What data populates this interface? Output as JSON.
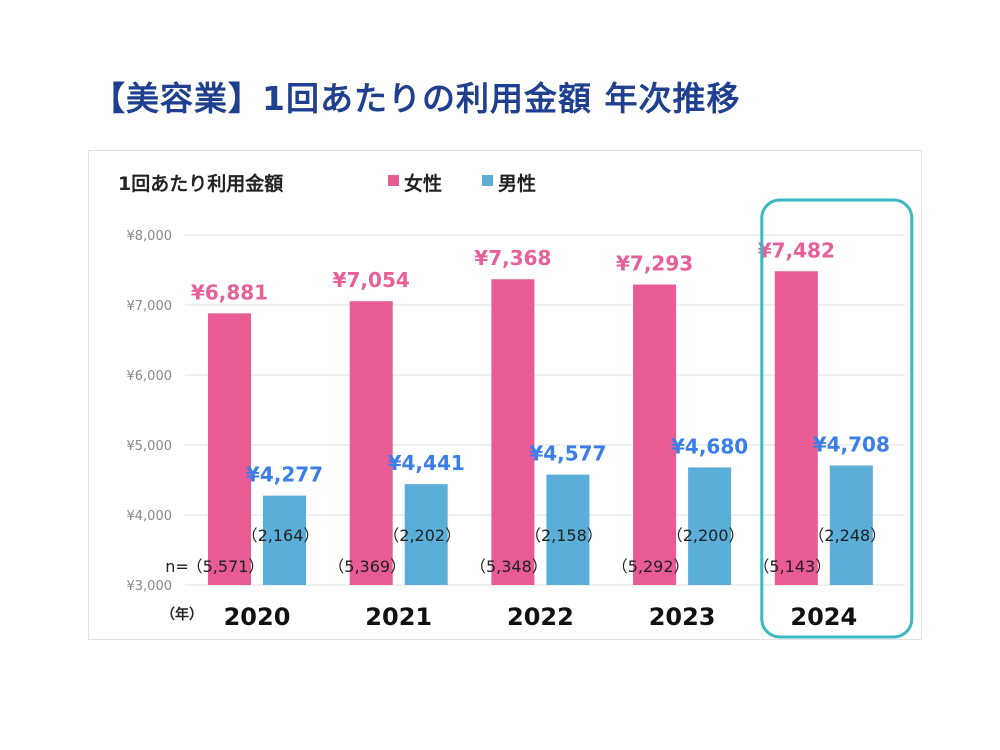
{
  "page_title": "【美容業】1回あたりの利用金額 年次推移",
  "chart_data": {
    "type": "bar",
    "title": "1回あたり利用金額",
    "categories": [
      "2020",
      "2021",
      "2022",
      "2023",
      "2024"
    ],
    "x_unit_label": "（年）",
    "series": [
      {
        "name": "女性",
        "values": [
          6881,
          7054,
          7368,
          7293,
          7482
        ],
        "labels": [
          "¥6,881",
          "¥7,054",
          "¥7,368",
          "¥7,293",
          "¥7,482"
        ],
        "n": [
          "（5,571）",
          "（5,369）",
          "（5,348）",
          "（5,292）",
          "（5,143）"
        ],
        "color": "#e85b94",
        "label_color": "#e8609a"
      },
      {
        "name": "男性",
        "values": [
          4277,
          4441,
          4577,
          4680,
          4708
        ],
        "labels": [
          "¥4,277",
          "¥4,441",
          "¥4,577",
          "¥4,680",
          "¥4,708"
        ],
        "n": [
          "（2,164）",
          "（2,202）",
          "（2,158）",
          "（2,200）",
          "（2,248）"
        ],
        "color": "#5aaed8",
        "label_color": "#3a7ee8"
      }
    ],
    "n_prefix": "n=",
    "ylim": [
      3000,
      8000
    ],
    "yticks": [
      3000,
      4000,
      5000,
      6000,
      7000,
      8000
    ],
    "ytick_labels": [
      "¥3,000",
      "¥4,000",
      "¥5,000",
      "¥6,000",
      "¥7,000",
      "¥8,000"
    ],
    "grid": true,
    "legend_position": "top",
    "highlight_category": "2024",
    "highlight_color": "#3bb8c0"
  }
}
